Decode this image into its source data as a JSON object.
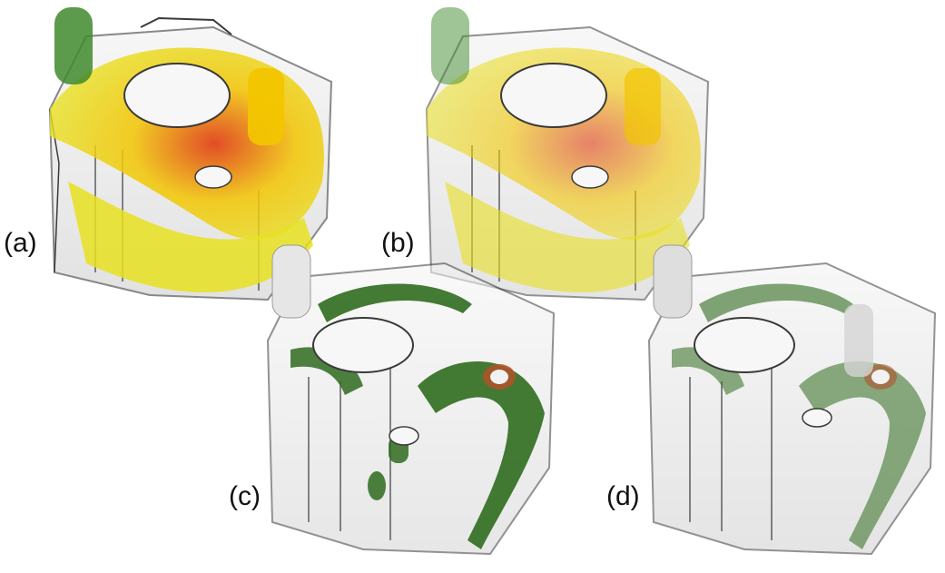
{
  "figure": {
    "panels": [
      {
        "label": "(a)",
        "render": "translucent-block-heatmap-yellow-red"
      },
      {
        "label": "(b)",
        "render": "translucent-block-heatmap-yellow-red-faded"
      },
      {
        "label": "(c)",
        "render": "translucent-block-heatmap-green-red"
      },
      {
        "label": "(d)",
        "render": "translucent-block-heatmap-green-red-faded"
      }
    ]
  },
  "colors": {
    "background": "#ffffff",
    "hot": "#e03a10",
    "warm": "#f2c500",
    "yellow": "#e8e020",
    "green": "#2f6b1e",
    "dark_green": "#1f4d16",
    "glass": "#d9d9d9",
    "edge": "#3a3a3a"
  }
}
